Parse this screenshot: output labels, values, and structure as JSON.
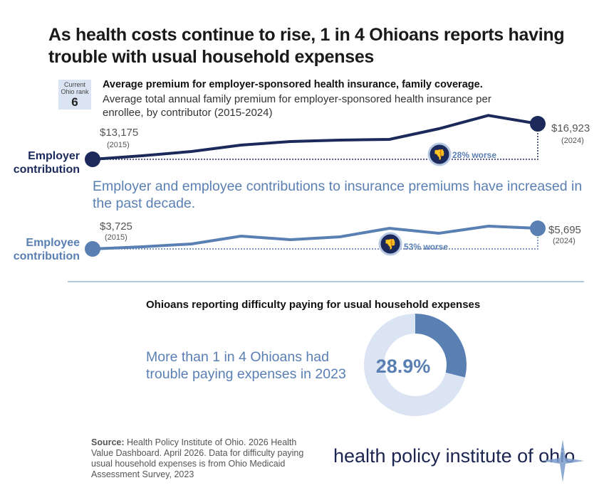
{
  "title": "As health costs continue to rise, 1 in 4 Ohioans reports having trouble with usual household expenses",
  "rank": {
    "label": "Current Ohio rank",
    "value": "6"
  },
  "subtitle_bold": "Average premium for employer-sponsored health insurance, family coverage.",
  "subtitle": "Average total annual family premium for employer-sponsored health insurance per enrollee, by contributor (2015-2024)",
  "employer": {
    "label": "Employer contribution",
    "start_value": "$13,175",
    "start_year": "(2015)",
    "end_value": "$16,923",
    "end_year": "(2024)",
    "change": "28% worse",
    "color": "#1b2a5a"
  },
  "note1": "Employer and employee contributions to insurance premiums have increased in the past decade.",
  "employee": {
    "label": "Employee contribution",
    "start_value": "$3,725",
    "start_year": "(2015)",
    "end_value": "$5,695",
    "end_year": "(2024)",
    "change": "53% worse",
    "color": "#5a7fb3"
  },
  "section2_title": "Ohioans reporting difficulty paying for usual household expenses",
  "note2": "More than 1 in 4 Ohioans had trouble paying expenses in 2023",
  "source_label": "Source:",
  "source": "Health Policy Institute of Ohio. 2026 Health Value Dashboard. April 2026.  Data for difficulty paying usual household expenses is from Ohio Medicaid Assessment Survey, 2023",
  "logo": "health policy institute of ohio",
  "chart_data": [
    {
      "type": "line",
      "x": [
        2015,
        2016,
        2017,
        2018,
        2019,
        2020,
        2021,
        2022,
        2023,
        2024
      ],
      "series": [
        {
          "name": "Employer contribution",
          "values": [
            13175,
            13550,
            14000,
            14675,
            15050,
            15200,
            15275,
            16400,
            17800,
            16923
          ]
        }
      ]
    },
    {
      "type": "line",
      "x": [
        2015,
        2016,
        2017,
        2018,
        2019,
        2020,
        2021,
        2022,
        2023,
        2024
      ],
      "series": [
        {
          "name": "Employee contribution",
          "values": [
            3725,
            3930,
            4200,
            4950,
            4610,
            4880,
            5695,
            5220,
            5900,
            5695
          ]
        }
      ]
    },
    {
      "type": "pie",
      "donut": true,
      "values": [
        28.9,
        71.1
      ],
      "label": "28.9%",
      "colors": [
        "#5a7fb3",
        "#dbe4f3"
      ]
    }
  ]
}
